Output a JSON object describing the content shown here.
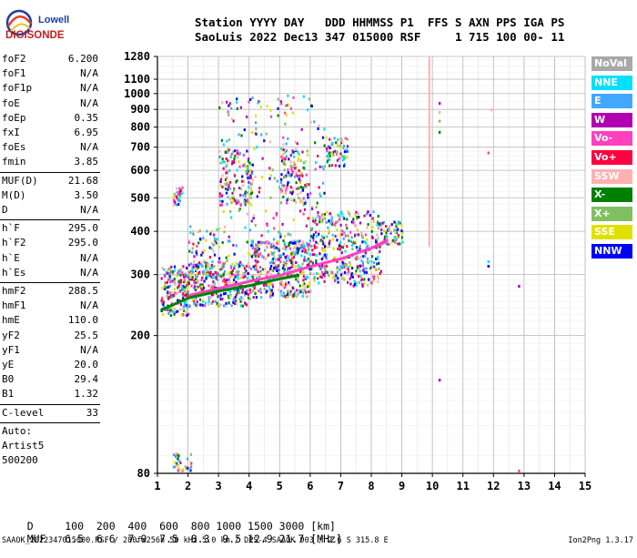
{
  "logo": {
    "line1": "Lowell",
    "line2": "DIGISONDE"
  },
  "header": {
    "labels": "Station YYYY DAY   DDD HHMMSS P1  FFS S AXN PPS IGA PS",
    "values": "SaoLuis 2022 Dec13 347 015000 RSF     1 715 100 00- 11"
  },
  "params": {
    "group1": [
      {
        "name": "foF2",
        "value": "6.200"
      },
      {
        "name": "foF1",
        "value": "N/A"
      },
      {
        "name": "foF1p",
        "value": "N/A"
      },
      {
        "name": "foE",
        "value": "N/A"
      },
      {
        "name": "foEp",
        "value": "0.35"
      },
      {
        "name": "fxI",
        "value": "6.95"
      },
      {
        "name": "foEs",
        "value": "N/A"
      },
      {
        "name": "fmin",
        "value": "3.85"
      }
    ],
    "group2": [
      {
        "name": "MUF(D)",
        "value": "21.68"
      },
      {
        "name": "M(D)",
        "value": "3.50"
      },
      {
        "name": "D",
        "value": "N/A"
      }
    ],
    "group3": [
      {
        "name": "h`F",
        "value": "295.0"
      },
      {
        "name": "h`F2",
        "value": "295.0"
      },
      {
        "name": "h`E",
        "value": "N/A"
      },
      {
        "name": "h`Es",
        "value": "N/A"
      }
    ],
    "group4": [
      {
        "name": "hmF2",
        "value": "288.5"
      },
      {
        "name": "hmF1",
        "value": "N/A"
      },
      {
        "name": "hmE",
        "value": "110.0"
      },
      {
        "name": "yF2",
        "value": "25.5"
      },
      {
        "name": "yF1",
        "value": "N/A"
      },
      {
        "name": "yE",
        "value": "20.0"
      },
      {
        "name": "B0",
        "value": "29.4"
      },
      {
        "name": "B1",
        "value": "1.32"
      }
    ],
    "clevel": {
      "name": "C-level",
      "value": "33"
    },
    "auto": [
      "Auto:",
      "Artist5",
      "500200"
    ]
  },
  "legend": [
    {
      "label": "NoVal",
      "color": "#a8a8a8"
    },
    {
      "label": "NNE",
      "color": "#00e0ff"
    },
    {
      "label": "E",
      "color": "#40a8ff"
    },
    {
      "label": "W",
      "color": "#b000b0"
    },
    {
      "label": "Vo-",
      "color": "#ff40c0"
    },
    {
      "label": "Vo+",
      "color": "#ff0040"
    },
    {
      "label": "SSW",
      "color": "#ffb0b0"
    },
    {
      "label": "X-",
      "color": "#008000"
    },
    {
      "label": "X+",
      "color": "#80c060"
    },
    {
      "label": "SSE",
      "color": "#e0e000"
    },
    {
      "label": "NNW",
      "color": "#0000ff"
    }
  ],
  "dmuf": {
    "d_label": "D",
    "d_values": [
      "100",
      "200",
      "400",
      "600",
      "800",
      "1000",
      "1500",
      "3000"
    ],
    "d_unit": "[km]",
    "muf_label": "MUF",
    "muf_values": [
      "6.5",
      "6.6",
      "7.0",
      "7.5",
      "8.3",
      "9.5",
      "12.9",
      "21.7"
    ],
    "muf_unit": "[MHz]"
  },
  "footer": {
    "left": "SAAOK_2022347015000.RSF / 280fx256h 50 kHz 5.0 km / DPS-4 SAAOK 903 / 2.6 S 315.8 E",
    "right": "Ion2Png 1.3.17"
  },
  "chart_data": {
    "type": "scatter",
    "title": "",
    "xlabel": "",
    "ylabel": "",
    "xlim": [
      1,
      15
    ],
    "ylim": [
      80,
      1280
    ],
    "y_scale": "log",
    "grid": true,
    "x_ticks": [
      1,
      2,
      3,
      4,
      5,
      6,
      7,
      8,
      9,
      10,
      11,
      12,
      13,
      14,
      15
    ],
    "y_ticks": [
      80,
      200,
      300,
      400,
      500,
      600,
      700,
      800,
      900,
      1000,
      1100,
      1280
    ],
    "traces": [
      {
        "name": "o-trace",
        "color": "#ff40c0",
        "x": [
          2.0,
          3.0,
          4.0,
          5.0,
          6.0,
          7.0,
          8.0,
          8.5
        ],
        "y": [
          262,
          275,
          288,
          300,
          318,
          335,
          360,
          378
        ]
      },
      {
        "name": "x-trace",
        "color": "#008000",
        "x": [
          1.1,
          2.0,
          3.0,
          4.0,
          5.0,
          5.6
        ],
        "y": [
          238,
          258,
          270,
          280,
          293,
          300
        ]
      }
    ],
    "clusters": [
      {
        "x": [
          1.1,
          2.0
        ],
        "y": [
          230,
          320
        ],
        "n": 200
      },
      {
        "x": [
          2.0,
          4.0
        ],
        "y": [
          245,
          330
        ],
        "n": 320
      },
      {
        "x": [
          4.0,
          6.0
        ],
        "y": [
          260,
          380
        ],
        "n": 380
      },
      {
        "x": [
          6.0,
          8.3
        ],
        "y": [
          280,
          460
        ],
        "n": 380
      },
      {
        "x": [
          8.3,
          9.0
        ],
        "y": [
          370,
          430
        ],
        "n": 60
      },
      {
        "x": [
          2.0,
          3.0
        ],
        "y": [
          300,
          420
        ],
        "n": 70
      },
      {
        "x": [
          1.5,
          1.8
        ],
        "y": [
          480,
          540
        ],
        "n": 30
      },
      {
        "x": [
          3.0,
          4.1
        ],
        "y": [
          480,
          700
        ],
        "n": 120
      },
      {
        "x": [
          5.0,
          5.9
        ],
        "y": [
          480,
          700
        ],
        "n": 110
      },
      {
        "x": [
          6.5,
          7.2
        ],
        "y": [
          620,
          760
        ],
        "n": 60
      },
      {
        "x": [
          3.0,
          6.5
        ],
        "y": [
          300,
          1000
        ],
        "n": 260
      },
      {
        "x": [
          1.5,
          2.1
        ],
        "y": [
          82,
          92
        ],
        "n": 35
      }
    ],
    "lines": [
      {
        "x": 9.9,
        "y": [
          360,
          1275
        ],
        "color": "#ffb0b0"
      }
    ],
    "extra_points": [
      {
        "x": 10.2,
        "y": 945
      },
      {
        "x": 10.2,
        "y": 890
      },
      {
        "x": 10.2,
        "y": 840
      },
      {
        "x": 10.2,
        "y": 780
      },
      {
        "x": 11.8,
        "y": 680
      },
      {
        "x": 11.8,
        "y": 330
      },
      {
        "x": 11.8,
        "y": 320
      },
      {
        "x": 12.8,
        "y": 280
      },
      {
        "x": 12.8,
        "y": 82
      },
      {
        "x": 10.2,
        "y": 150
      },
      {
        "x": 11.9,
        "y": 905
      }
    ]
  }
}
